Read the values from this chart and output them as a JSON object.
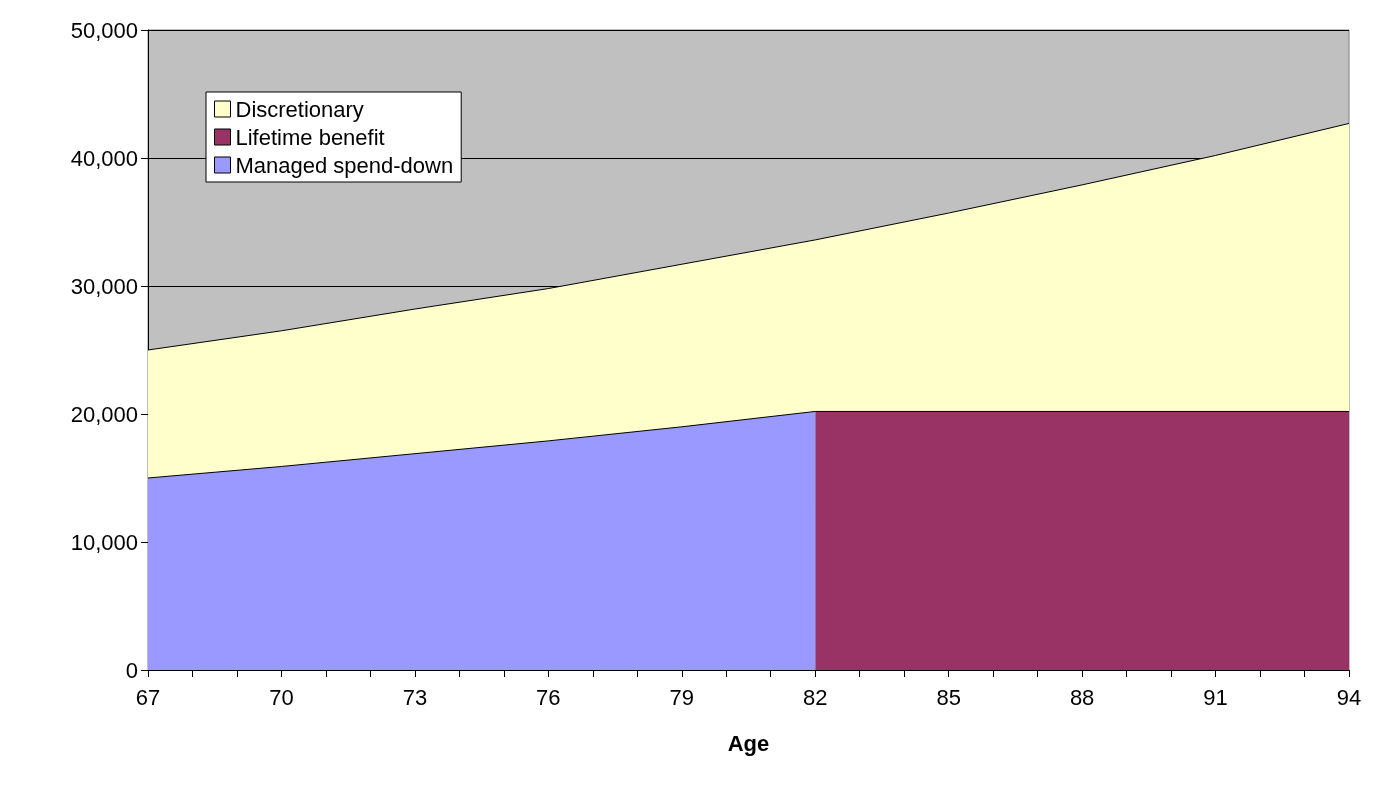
{
  "chart_data": {
    "type": "area",
    "xlabel": "Age",
    "legend": "top left",
    "grid": "y",
    "xlim": [
      67,
      94
    ],
    "xticks": [
      67,
      {
        "value": 68,
        "label": null
      },
      {
        "value": 69,
        "label": null
      },
      70,
      {
        "value": 71,
        "label": null
      },
      {
        "value": 72,
        "label": null
      },
      73,
      {
        "value": 74,
        "label": null
      },
      {
        "value": 75,
        "label": null
      },
      76,
      {
        "value": 77,
        "label": null
      },
      {
        "value": 78,
        "label": null
      },
      79,
      {
        "value": 80,
        "label": null
      },
      {
        "value": 81,
        "label": null
      },
      82,
      {
        "value": 83,
        "label": null
      },
      {
        "value": 84,
        "label": null
      },
      85,
      {
        "value": 86,
        "label": null
      },
      {
        "value": 87,
        "label": null
      },
      88,
      {
        "value": 89,
        "label": null
      },
      {
        "value": 90,
        "label": null
      },
      91,
      {
        "value": 92,
        "label": null
      },
      {
        "value": 93,
        "label": null
      },
      94
    ],
    "ylim": [
      0,
      50000
    ],
    "yticks": [
      0,
      {
        "value": 10000,
        "label": "10,000"
      },
      {
        "value": 20000,
        "label": "20,000"
      },
      {
        "value": 30000,
        "label": "30,000"
      },
      {
        "value": 40000,
        "label": "40,000"
      },
      {
        "value": 50000,
        "label": "50,000"
      }
    ],
    "series": [
      {
        "name": "Discretionary",
        "color": "#ffffcc",
        "x": [
          67,
          70,
          73,
          76,
          79,
          82,
          85,
          88,
          91,
          94
        ],
        "values": [
          25000,
          26500,
          28200,
          29800,
          31700,
          33600,
          35700,
          37900,
          40200,
          42700
        ]
      },
      {
        "name": "Lifetime benefit",
        "color": "#993366",
        "x": [
          82,
          94
        ],
        "values": [
          20200,
          20200
        ]
      },
      {
        "name": "Managed spend-down",
        "color": "#9999ff",
        "x": [
          67,
          70,
          73,
          76,
          79,
          82
        ],
        "values": [
          15000,
          15900,
          16900,
          17900,
          19000,
          20200
        ]
      }
    ]
  }
}
